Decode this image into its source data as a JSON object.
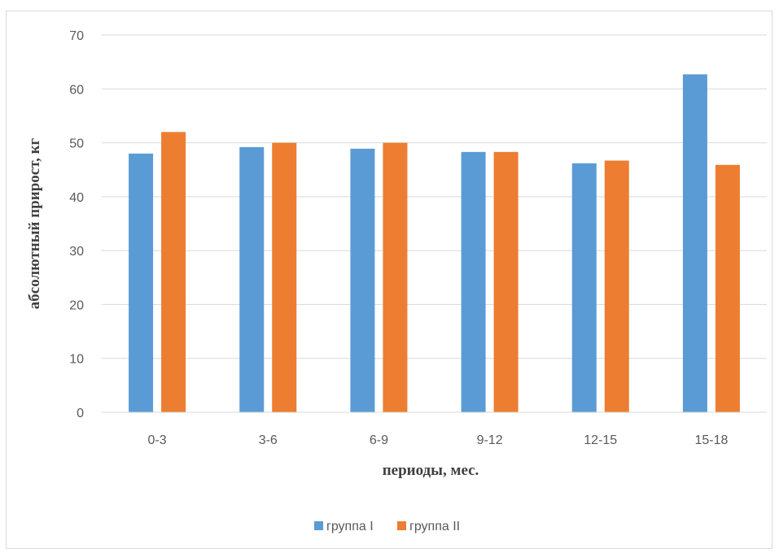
{
  "chart_data": {
    "type": "bar",
    "categories": [
      "0-3",
      "3-6",
      "6-9",
      "9-12",
      "12-15",
      "15-18"
    ],
    "series": [
      {
        "name": "группа I",
        "color": "#5b9bd5",
        "values": [
          48.0,
          49.2,
          48.9,
          48.3,
          46.2,
          62.7
        ]
      },
      {
        "name": "группа II",
        "color": "#ed7d31",
        "values": [
          52.0,
          50.0,
          50.0,
          48.3,
          46.7,
          45.9
        ]
      }
    ],
    "title": "",
    "xlabel": "периоды, мес.",
    "ylabel": "абсолютный прирост, кг",
    "ylim": [
      0,
      70
    ],
    "yticks": [
      0,
      10,
      20,
      30,
      40,
      50,
      60,
      70
    ],
    "grid": true,
    "legend_position": "bottom"
  }
}
